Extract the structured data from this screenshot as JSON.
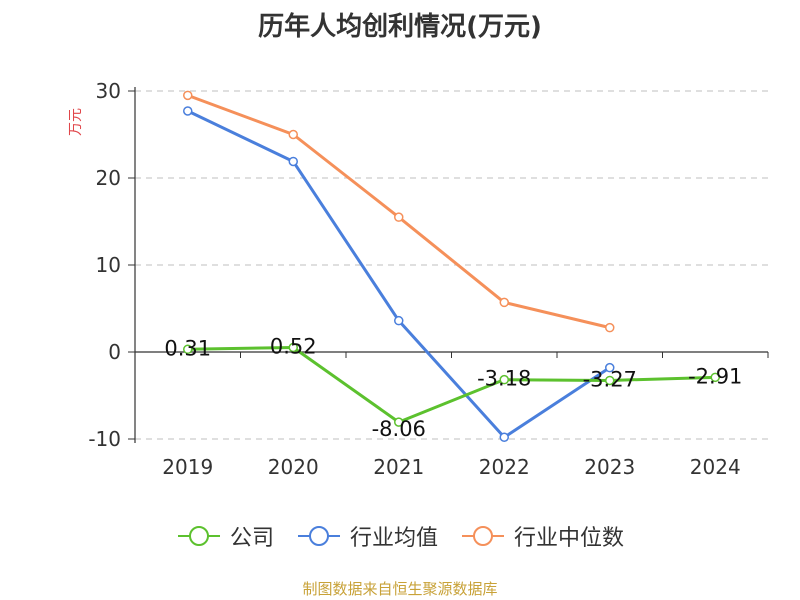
{
  "title": "历年人均创利情况(万元)",
  "source_note": "制图数据来自恒生聚源数据库",
  "chart_data": {
    "type": "line",
    "title": "历年人均创利情况(万元)",
    "ylabel": "万元",
    "xlabel": "",
    "categories": [
      "2019",
      "2020",
      "2021",
      "2022",
      "2023",
      "2024"
    ],
    "ylim": [
      -10,
      30
    ],
    "yticks": [
      30,
      20,
      10,
      0,
      -10
    ],
    "grid": true,
    "legend_position": "bottom",
    "series": [
      {
        "name": "公司",
        "color": "#5cc12e",
        "values": [
          0.31,
          0.52,
          -8.06,
          -3.18,
          -3.27,
          -2.91
        ],
        "labels": [
          "0.31",
          "0.52",
          "-8.06",
          "-3.18",
          "-3.27",
          "-2.91"
        ]
      },
      {
        "name": "行业均值",
        "color": "#4a7fdc",
        "values": [
          27.7,
          21.9,
          3.6,
          -9.8,
          -1.8,
          null
        ]
      },
      {
        "name": "行业中位数",
        "color": "#f5905a",
        "values": [
          29.5,
          25.0,
          15.5,
          5.7,
          2.8,
          null
        ]
      }
    ]
  }
}
